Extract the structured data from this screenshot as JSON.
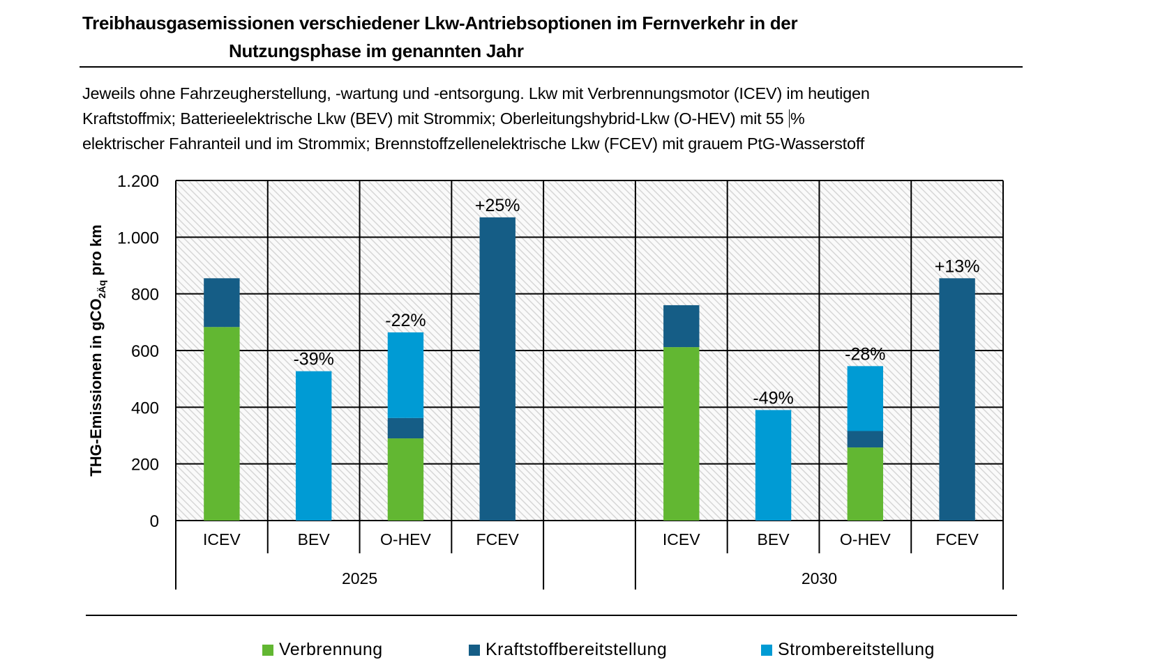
{
  "header": {
    "title_line1": "Treibhausgasemissionen verschiedener Lkw-Antriebsoptionen im Fernverkehr in der",
    "title_line2": "Nutzungsphase im genannten Jahr",
    "subtitle_line1": "Jeweils ohne Fahrzeugherstellung, -wartung und -entsorgung. Lkw mit Verbrennungsmotor (ICEV) im heutigen",
    "subtitle_line2a": "Kraftstoffmix; Batterieelektrische Lkw (BEV) mit Strommix; Oberleitungshybrid-Lkw (O-HEV) mit 55 ",
    "subtitle_line2b": "%",
    "subtitle_line3": "elektrischer Fahranteil und im Strommix; Brennstoffzellenelektrische Lkw (FCEV) mit grauem PtG-Wasserstoff"
  },
  "chart_data": {
    "type": "bar",
    "stacked": true,
    "title": "Treibhausgasemissionen verschiedener Lkw-Antriebsoptionen im Fernverkehr in der Nutzungsphase im genannten Jahr",
    "ylabel": "THG-Emissionen  in  gCO2Äq pro km",
    "ylabel_main": "THG-Emissionen  in  gCO",
    "ylabel_sub": "2Äq",
    "ylabel_tail": " pro km",
    "xlabel": "",
    "ylim": [
      0,
      1200
    ],
    "yticks": [
      0,
      200,
      400,
      600,
      800,
      1000,
      1200
    ],
    "ytick_labels": [
      "0",
      "200",
      "400",
      "600",
      "800",
      "1.000",
      "1.200"
    ],
    "grid": true,
    "legend_position": "bottom",
    "groups": [
      {
        "label": "2025",
        "categories": [
          "ICEV",
          "BEV",
          "O-HEV",
          "FCEV"
        ]
      },
      {
        "label": "2030",
        "categories": [
          "ICEV",
          "BEV",
          "O-HEV",
          "FCEV"
        ]
      }
    ],
    "categories": [
      "ICEV",
      "BEV",
      "O-HEV",
      "FCEV",
      "",
      "ICEV",
      "BEV",
      "O-HEV",
      "FCEV"
    ],
    "series": [
      {
        "name": "Verbrennung",
        "color": "#62b732",
        "values": [
          683,
          0,
          290,
          0,
          null,
          612,
          0,
          258,
          0
        ]
      },
      {
        "name": "Kraftstoffbereitstellung",
        "color": "#155d86",
        "values": [
          172,
          0,
          72,
          1070,
          null,
          148,
          0,
          58,
          855
        ]
      },
      {
        "name": "Strombereitstellung",
        "color": "#009bd4",
        "values": [
          0,
          527,
          302,
          0,
          null,
          0,
          390,
          229,
          0
        ]
      }
    ],
    "annotations": [
      "",
      "-39%",
      "-22%",
      "+25%",
      "",
      "",
      "-49%",
      "-28%",
      "+13%"
    ]
  },
  "colors": {
    "gridline": "#000000",
    "hatch": "#d9d9d9",
    "plot_background": "#f7f7f7"
  }
}
